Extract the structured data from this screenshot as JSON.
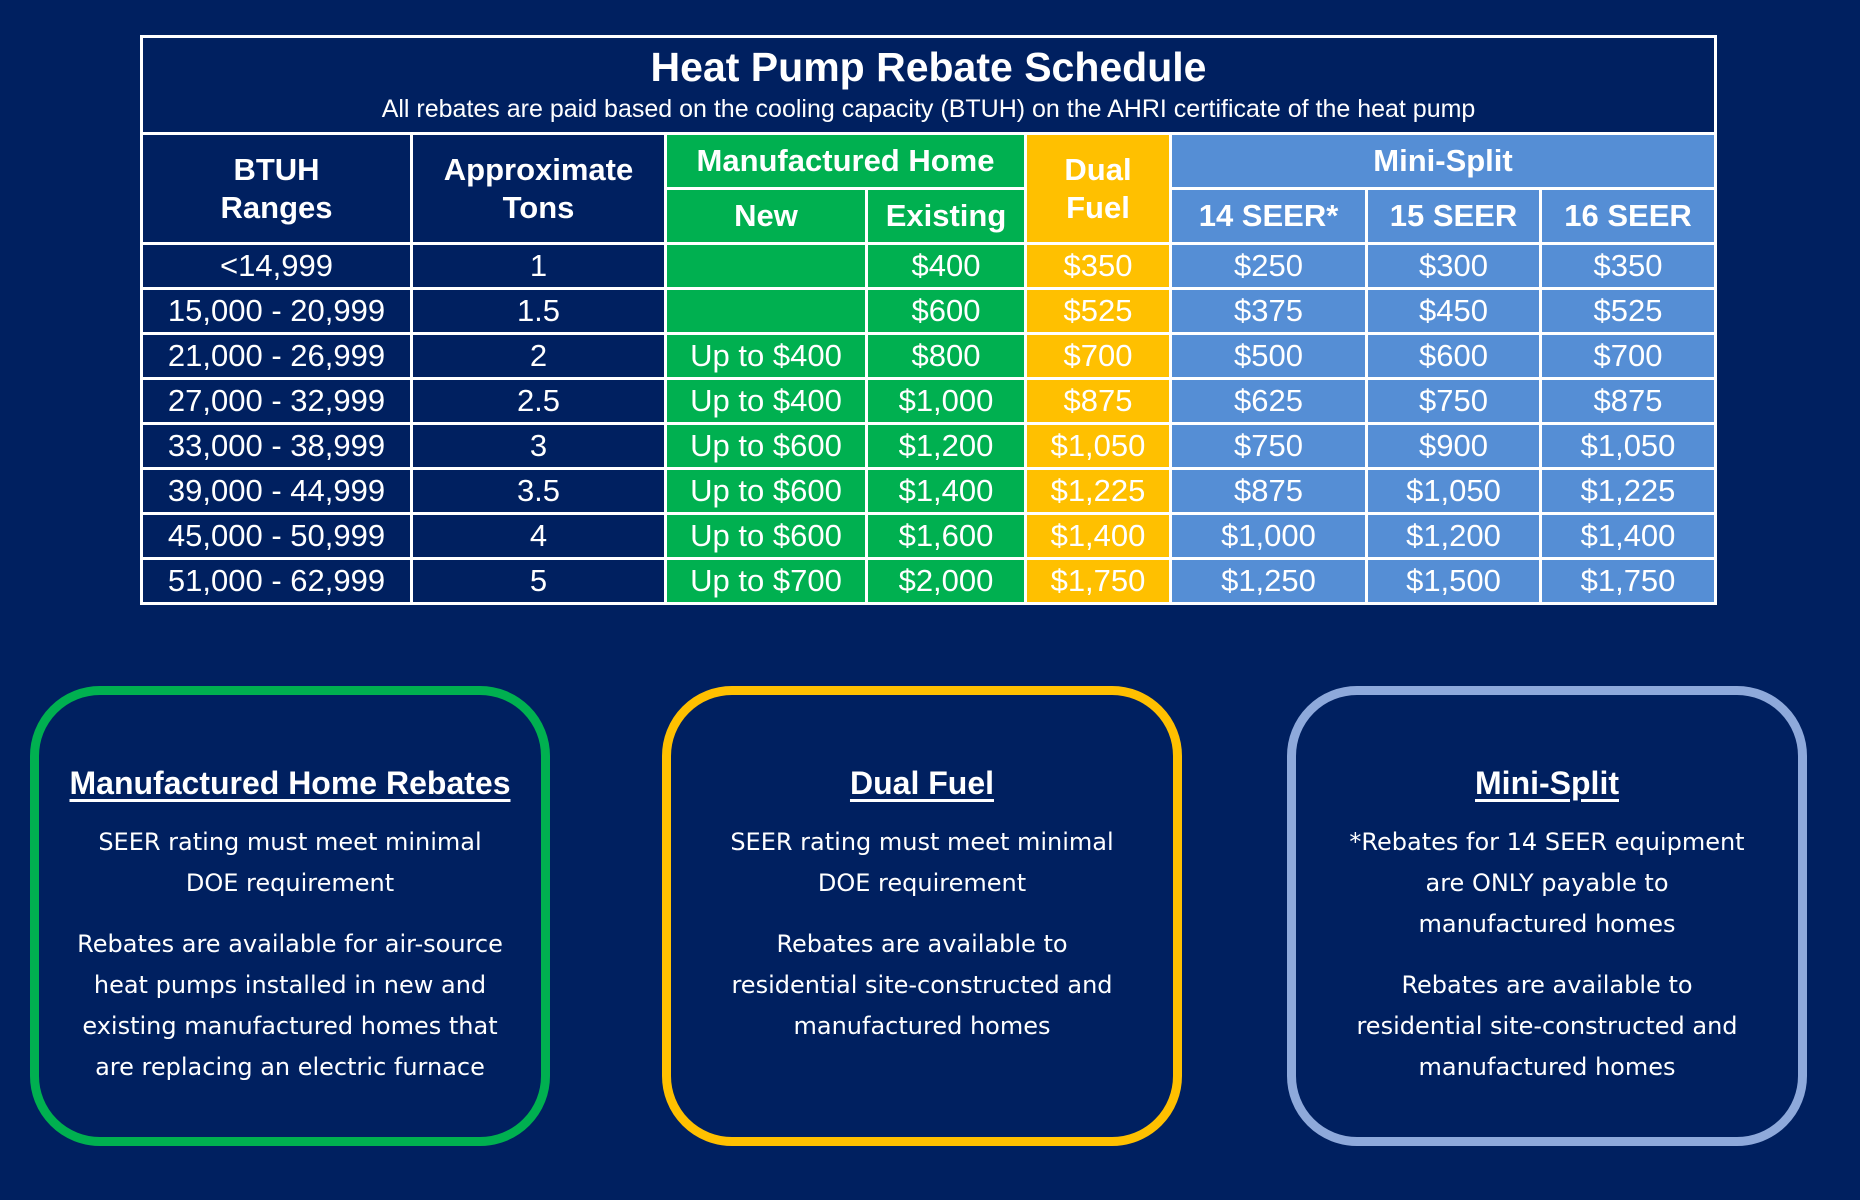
{
  "title": "Heat Pump Rebate Schedule",
  "subtitle": "All rebates are paid based on the cooling capacity (BTUH) on the AHRI certificate of the heat pump",
  "headers": {
    "btuh": [
      "BTUH",
      "Ranges"
    ],
    "tons": [
      "Approximate",
      "Tons"
    ],
    "manufactured_home": "Manufactured Home",
    "new": "New",
    "existing": "Existing",
    "dual_fuel": [
      "Dual",
      "Fuel"
    ],
    "mini_split": "Mini-Split",
    "seer14": "14 SEER*",
    "seer15": "15 SEER",
    "seer16": "16 SEER"
  },
  "rows": [
    [
      "<14,999",
      "1",
      "",
      "$400",
      "$350",
      "$250",
      "$300",
      "$350"
    ],
    [
      "15,000 - 20,999",
      "1.5",
      "",
      "$600",
      "$525",
      "$375",
      "$450",
      "$525"
    ],
    [
      "21,000 - 26,999",
      "2",
      "Up to $400",
      "$800",
      "$700",
      "$500",
      "$600",
      "$700"
    ],
    [
      "27,000 - 32,999",
      "2.5",
      "Up to $400",
      "$1,000",
      "$875",
      "$625",
      "$750",
      "$875"
    ],
    [
      "33,000 - 38,999",
      "3",
      "Up to $600",
      "$1,200",
      "$1,050",
      "$750",
      "$900",
      "$1,050"
    ],
    [
      "39,000 - 44,999",
      "3.5",
      "Up to $600",
      "$1,400",
      "$1,225",
      "$875",
      "$1,050",
      "$1,225"
    ],
    [
      "45,000 - 50,999",
      "4",
      "Up to $600",
      "$1,600",
      "$1,400",
      "$1,000",
      "$1,200",
      "$1,400"
    ],
    [
      "51,000 - 62,999",
      "5",
      "Up to $700",
      "$2,000",
      "$1,750",
      "$1,250",
      "$1,500",
      "$1,750"
    ]
  ],
  "boxes": [
    {
      "heading": "Manufactured Home Rebates",
      "color": "#00B050",
      "paragraphs": [
        [
          "SEER rating must meet minimal",
          "DOE requirement"
        ],
        [
          "Rebates are available for air-source",
          "heat pumps installed in new and",
          "existing manufactured homes that",
          "are replacing an electric furnace"
        ]
      ]
    },
    {
      "heading": "Dual Fuel",
      "color": "#FFC000",
      "paragraphs": [
        [
          "SEER rating must meet minimal",
          "DOE requirement"
        ],
        [
          "Rebates are available to",
          "residential site-constructed and",
          "manufactured homes"
        ]
      ]
    },
    {
      "heading": "Mini-Split",
      "color": "#8EA9DB",
      "paragraphs": [
        [
          "*Rebates for 14 SEER equipment",
          "are ONLY payable to",
          "manufactured homes"
        ],
        [
          "Rebates are available to",
          "residential site-constructed and",
          "manufactured homes"
        ]
      ]
    }
  ],
  "colors": {
    "background": "#002060",
    "manufactured_home": "#00B050",
    "dual_fuel": "#FFC000",
    "mini_split": "#558ED5"
  }
}
